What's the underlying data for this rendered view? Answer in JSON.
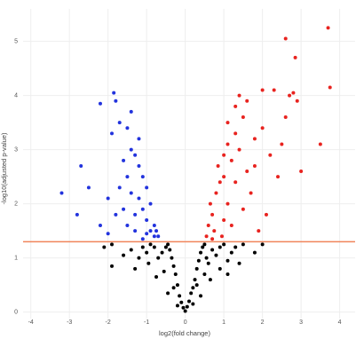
{
  "chart_data": {
    "type": "scatter",
    "x_label": "log2(fold change)",
    "y_label": "-log10(adjusted p-value)",
    "xlim": [
      -4.2,
      4.4
    ],
    "ylim": [
      -0.12,
      5.6
    ],
    "xticks": [
      -4,
      -3,
      -2,
      -1,
      0,
      1,
      2,
      3,
      4
    ],
    "yticks": [
      0,
      1,
      2,
      3,
      4,
      5
    ],
    "grid": true,
    "hline": {
      "value": 1.3,
      "color": "#f0845a"
    },
    "series": [
      {
        "color": "#000000",
        "x": [
          0,
          0.05,
          -0.05,
          0.1,
          -0.1,
          0.15,
          -0.15,
          0.2,
          -0.2,
          0.25,
          -0.25,
          0.3,
          -0.3,
          0.35,
          -0.35,
          0.4,
          -0.4,
          0.45,
          -0.45,
          0.5,
          -0.5,
          0.55,
          -0.6,
          0.6,
          -0.7,
          0.7,
          -0.8,
          0.8,
          -0.9,
          0.9,
          -1.0,
          1.0,
          -1.1,
          1.1,
          -1.2,
          1.2,
          -1.4,
          1.3,
          -1.6,
          1.5,
          -1.9,
          1.8,
          -2.1,
          2.0,
          -1.9,
          0.3,
          -0.3,
          0.5,
          -0.55,
          0.65,
          -0.75,
          0.4,
          -0.45,
          0.9,
          -0.95,
          1.1,
          -1.3,
          0.2,
          -0.2,
          1.4
        ],
        "y": [
          0.02,
          0.1,
          0.08,
          0.2,
          0.18,
          0.35,
          0.3,
          0.45,
          0.5,
          0.6,
          0.7,
          0.8,
          0.85,
          0.95,
          1.0,
          1.1,
          1.15,
          1.2,
          1.25,
          1.25,
          1.2,
          1.0,
          1.1,
          0.9,
          1.0,
          1.15,
          1.2,
          1.05,
          1.25,
          1.2,
          1.1,
          1.25,
          1.2,
          0.95,
          1.0,
          1.1,
          1.15,
          1.2,
          1.05,
          1.25,
          1.25,
          1.1,
          1.2,
          1.25,
          0.85,
          0.5,
          0.45,
          0.7,
          0.75,
          0.6,
          0.65,
          0.3,
          0.35,
          0.8,
          0.9,
          0.7,
          0.8,
          0.15,
          0.12,
          0.9
        ]
      },
      {
        "color": "#2233dd",
        "x": [
          -0.7,
          -0.8,
          -0.9,
          -1.0,
          -1.1,
          -0.9,
          -1.2,
          -1.3,
          -1.0,
          -1.1,
          -1.4,
          -1.5,
          -1.6,
          -1.2,
          -1.3,
          -1.5,
          -1.7,
          -1.8,
          -1.4,
          -1.6,
          -1.2,
          -1.5,
          -1.7,
          -1.9,
          -1.8,
          -1.85,
          -2.2,
          -1.4,
          -2.0,
          -2.2,
          -2.5,
          -2.7,
          -3.2,
          -2.8,
          -0.8,
          -1.0,
          -1.3,
          -0.75,
          -1.1,
          -2.0
        ],
        "y": [
          1.4,
          1.6,
          1.5,
          1.7,
          1.9,
          2.0,
          2.1,
          1.8,
          2.3,
          2.5,
          2.2,
          1.6,
          1.9,
          2.7,
          2.9,
          2.5,
          2.3,
          1.8,
          3.0,
          2.8,
          3.2,
          3.4,
          3.5,
          3.3,
          3.9,
          4.05,
          3.85,
          3.7,
          2.1,
          1.6,
          2.3,
          2.7,
          2.2,
          1.8,
          1.4,
          1.45,
          1.5,
          1.5,
          1.35,
          1.45
        ]
      },
      {
        "color": "#e8231f",
        "x": [
          0.55,
          0.6,
          0.7,
          0.65,
          0.8,
          0.75,
          0.9,
          0.85,
          1.0,
          1.0,
          1.1,
          1.2,
          1.3,
          1.4,
          1.5,
          1.3,
          1.4,
          1.1,
          1.6,
          1.7,
          1.8,
          2.0,
          2.0,
          2.2,
          2.5,
          2.6,
          2.7,
          2.8,
          2.9,
          2.6,
          2.85,
          3.7,
          3.75,
          3.5,
          2.4,
          2.1,
          1.9,
          1.5,
          1.2,
          0.95,
          1.1,
          1.0,
          0.7,
          1.3,
          1.6,
          2.3,
          3.0,
          1.8
        ],
        "y": [
          1.4,
          1.6,
          1.8,
          2.0,
          2.2,
          1.5,
          2.4,
          2.7,
          2.5,
          2.9,
          3.1,
          2.8,
          3.3,
          3.0,
          3.6,
          3.8,
          4.0,
          3.5,
          2.6,
          2.2,
          3.2,
          3.4,
          4.1,
          2.9,
          3.1,
          3.6,
          4.0,
          4.05,
          3.9,
          5.05,
          4.7,
          5.25,
          4.15,
          3.1,
          2.5,
          1.8,
          1.5,
          1.9,
          1.6,
          1.4,
          2.0,
          1.7,
          1.35,
          2.4,
          3.9,
          4.1,
          2.6,
          2.7
        ]
      }
    ]
  }
}
